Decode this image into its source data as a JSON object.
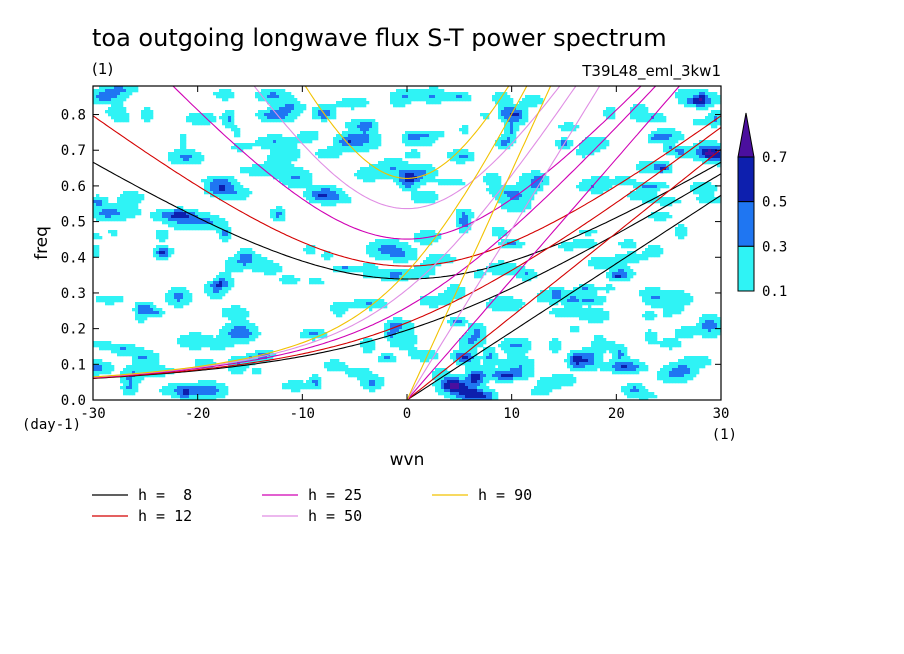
{
  "chart_data": {
    "type": "contour",
    "title": "toa outgoing longwave flux S-T power spectrum",
    "units_label": "(1)",
    "run_label": "T39L48_eml_3kw1",
    "xlabel": "wvn",
    "ylabel": "freq",
    "x_unit_label": "(1)",
    "y_unit_label": "(day-1)",
    "xlim": [
      -30,
      30
    ],
    "ylim": [
      0,
      0.88
    ],
    "xticks": [
      -30,
      -20,
      -10,
      0,
      10,
      20,
      30
    ],
    "yticks": [
      0.0,
      0.1,
      0.2,
      0.3,
      0.4,
      0.5,
      0.6,
      0.7,
      0.8
    ],
    "xtick_labels": [
      "-30",
      "-20",
      "-10",
      "0",
      "10",
      "20",
      "30"
    ],
    "ytick_labels": [
      "0.0",
      "0.1",
      "0.2",
      "0.3",
      "0.4",
      "0.5",
      "0.6",
      "0.7",
      "0.8"
    ],
    "contour_levels": [
      0.1,
      0.3,
      0.5,
      0.7
    ],
    "colorbar_labels": [
      "0.7",
      "0.5",
      "0.3",
      "0.1"
    ],
    "colorbar_colors": [
      "#4b0f9e",
      "#0d1fae",
      "#1f76f2",
      "#2ff3f5"
    ],
    "curves": [
      {
        "name": "h =  8",
        "h": 8,
        "color": "#000000"
      },
      {
        "name": "h = 12",
        "h": 12,
        "color": "#d40000"
      },
      {
        "name": "h = 25",
        "h": 25,
        "color": "#d000b4"
      },
      {
        "name": "h = 50",
        "h": 50,
        "color": "#e08ee4"
      },
      {
        "name": "h = 90",
        "h": 90,
        "color": "#f2c200"
      }
    ]
  }
}
